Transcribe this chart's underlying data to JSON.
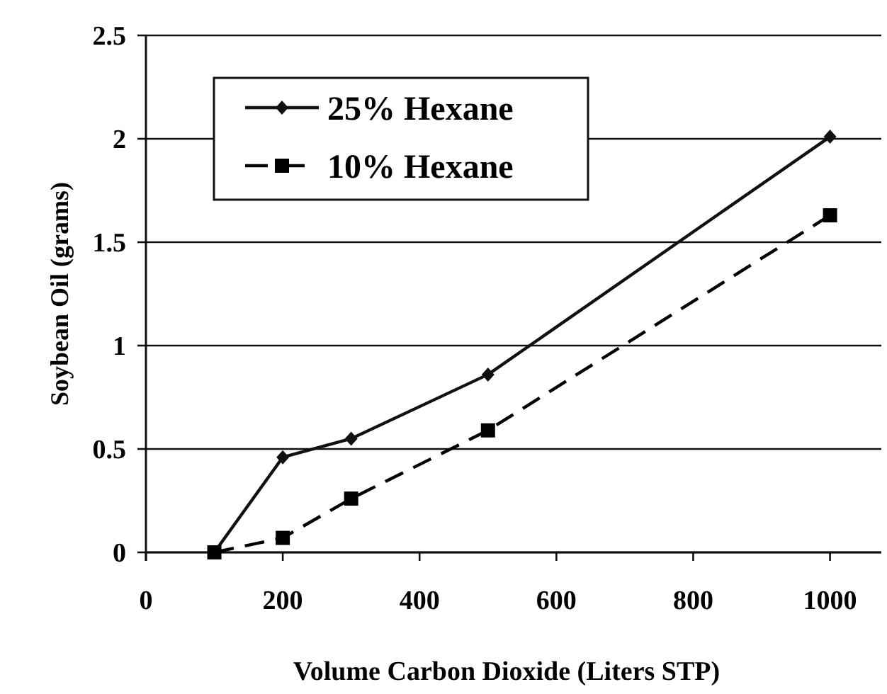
{
  "chart_data": {
    "type": "line",
    "xlabel": "Volume Carbon Dioxide (Liters STP)",
    "ylabel": "Soybean Oil (grams)",
    "xlim": [
      0,
      1075
    ],
    "xticks": [
      0,
      200,
      400,
      600,
      800,
      1000
    ],
    "ylim": [
      0,
      2.5
    ],
    "yticks": [
      0,
      0.5,
      1,
      1.5,
      2,
      2.5
    ],
    "grid": "y",
    "legend": "top left",
    "series": [
      {
        "name": "25% Hexane",
        "color": "#111111",
        "marker": "diamond",
        "line_style": "solid",
        "x": [
          100,
          200,
          300,
          500,
          1000
        ],
        "values": [
          0,
          0.46,
          0.55,
          0.86,
          2.01
        ]
      },
      {
        "name": "10% Hexane",
        "color": "#000000",
        "marker": "square",
        "line_style": "dashed",
        "x": [
          100,
          200,
          300,
          500,
          1000
        ],
        "values": [
          0,
          0.07,
          0.26,
          0.59,
          1.63
        ]
      }
    ]
  }
}
